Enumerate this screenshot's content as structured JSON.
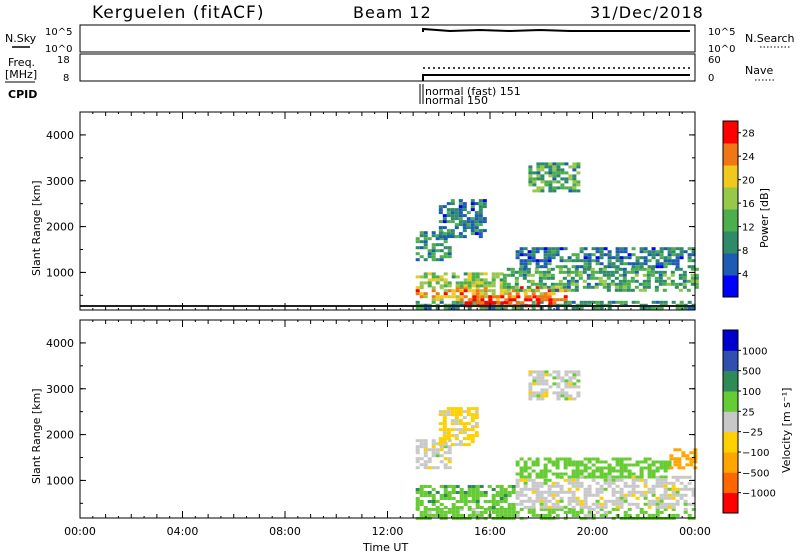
{
  "header": {
    "station": "Kerguelen (fitACF)",
    "beam": "Beam 12",
    "date": "31/Dec/2018"
  },
  "top_panels": {
    "nsky_label": "N.Sky",
    "nsky_ticks": [
      "10^5",
      "10^0"
    ],
    "nsearch_label": "N.Search",
    "nsearch_ticks": [
      "10^5",
      "10^0"
    ],
    "freq_label": "Freq.",
    "freq_unit": "[MHz]",
    "freq_ticks": [
      "18",
      "8"
    ],
    "nave_label": "Nave",
    "nave_ticks": [
      "60",
      "0"
    ],
    "cpid_label": "CPID",
    "cpid_entries": [
      "normal (fast) 151",
      "normal 150"
    ]
  },
  "colors": {
    "power_scale": [
      "#0000ff",
      "#1e5bb4",
      "#2f8a6a",
      "#4cae4c",
      "#98c84a",
      "#f0c81e",
      "#f07814",
      "#ff0000"
    ],
    "velocity_scale": [
      "#ff0000",
      "#ff6600",
      "#ffa500",
      "#ffd000",
      "#c8c8c8",
      "#66cc33",
      "#2e8b57",
      "#3050b0",
      "#0000cc"
    ]
  },
  "chart_data": [
    {
      "type": "heatmap",
      "panel": "power",
      "ylabel": "Slant Range [km]",
      "yticks": [
        "1000",
        "2000",
        "3000",
        "4000"
      ],
      "ylim": [
        180,
        4500
      ],
      "xlim": [
        0,
        24
      ],
      "colorbar_label": "Power [dB]",
      "colorbar_ticks": [
        "4",
        "8",
        "12",
        "16",
        "20",
        "24",
        "28"
      ],
      "colorbar_range": [
        0,
        30
      ],
      "data_start_ut": 13.1,
      "regions": [
        {
          "t0": 13.1,
          "t1": 24.0,
          "r0": 200,
          "r1": 380,
          "value": 10
        },
        {
          "t0": 13.1,
          "t1": 19.0,
          "r0": 380,
          "r1": 700,
          "value": 22
        },
        {
          "t0": 15.0,
          "t1": 18.5,
          "r0": 250,
          "r1": 500,
          "value": 28
        },
        {
          "t0": 13.1,
          "t1": 16.5,
          "r0": 700,
          "r1": 1000,
          "value": 16
        },
        {
          "t0": 16.5,
          "t1": 24.0,
          "r0": 600,
          "r1": 1100,
          "value": 12
        },
        {
          "t0": 13.1,
          "t1": 14.5,
          "r0": 1300,
          "r1": 1900,
          "value": 10
        },
        {
          "t0": 14.0,
          "t1": 15.8,
          "r0": 1800,
          "r1": 2600,
          "value": 8
        },
        {
          "t0": 17.0,
          "t1": 24.0,
          "r0": 1100,
          "r1": 1550,
          "value": 8
        },
        {
          "t0": 17.5,
          "t1": 19.5,
          "r0": 2800,
          "r1": 3400,
          "value": 12
        }
      ]
    },
    {
      "type": "heatmap",
      "panel": "velocity",
      "xlabel": "Time UT",
      "ylabel": "Slant Range [km]",
      "xticks": [
        "00:00",
        "04:00",
        "08:00",
        "12:00",
        "16:00",
        "20:00",
        "00:00"
      ],
      "yticks": [
        "1000",
        "2000",
        "3000",
        "4000"
      ],
      "ylim": [
        180,
        4500
      ],
      "xlim": [
        0,
        24
      ],
      "colorbar_label": "Velocity [m s⁻¹]",
      "colorbar_ticks": [
        "1000",
        "500",
        "100",
        "25",
        "−25",
        "−100",
        "−500",
        "−1000"
      ],
      "data_start_ut": 13.1,
      "regions": [
        {
          "t0": 13.1,
          "t1": 24.0,
          "r0": 200,
          "r1": 400,
          "value": 50
        },
        {
          "t0": 13.1,
          "t1": 17.0,
          "r0": 400,
          "r1": 900,
          "value": 80
        },
        {
          "t0": 17.0,
          "t1": 24.0,
          "r0": 400,
          "r1": 1100,
          "value": 0
        },
        {
          "t0": 13.1,
          "t1": 14.5,
          "r0": 1300,
          "r1": 1900,
          "value": 0
        },
        {
          "t0": 14.0,
          "t1": 15.5,
          "r0": 1800,
          "r1": 2600,
          "value": -40
        },
        {
          "t0": 17.0,
          "t1": 23.0,
          "r0": 1100,
          "r1": 1500,
          "value": 60
        },
        {
          "t0": 23.0,
          "t1": 24.0,
          "r0": 1300,
          "r1": 1700,
          "value": -200
        },
        {
          "t0": 17.5,
          "t1": 19.5,
          "r0": 2800,
          "r1": 3400,
          "value": 0
        }
      ]
    }
  ]
}
